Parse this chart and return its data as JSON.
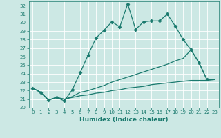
{
  "xlabel": "Humidex (Indice chaleur)",
  "xlim": [
    -0.5,
    23.5
  ],
  "ylim": [
    20,
    32.5
  ],
  "line_color": "#1a7a6e",
  "bg_color": "#cce8e4",
  "grid_color": "#ffffff",
  "series": [
    {
      "x": [
        0,
        1,
        2,
        3,
        4,
        5,
        6,
        7,
        8,
        9,
        10,
        11,
        12,
        13,
        14,
        15,
        16,
        17,
        18,
        19,
        20,
        21,
        22
      ],
      "y": [
        22.3,
        21.8,
        20.9,
        21.2,
        20.8,
        22.1,
        24.1,
        26.2,
        28.2,
        29.1,
        30.1,
        29.5,
        32.2,
        29.2,
        30.1,
        30.2,
        30.2,
        31.0,
        29.6,
        28.0,
        26.8,
        25.3,
        23.3
      ],
      "marker": "D",
      "markersize": 2.5,
      "linewidth": 0.9
    },
    {
      "x": [
        0,
        1,
        2,
        3,
        4,
        5,
        6,
        7,
        8,
        9,
        10,
        11,
        12,
        13,
        14,
        15,
        16,
        17,
        18,
        19,
        20,
        21,
        22,
        23
      ],
      "y": [
        22.3,
        21.8,
        20.9,
        21.2,
        21.0,
        21.3,
        21.8,
        22.0,
        22.3,
        22.6,
        23.0,
        23.3,
        23.6,
        23.9,
        24.2,
        24.5,
        24.8,
        25.1,
        25.5,
        25.8,
        26.8,
        25.3,
        23.3,
        23.3
      ],
      "marker": null,
      "markersize": 0,
      "linewidth": 0.9
    },
    {
      "x": [
        0,
        1,
        2,
        3,
        4,
        5,
        6,
        7,
        8,
        9,
        10,
        11,
        12,
        13,
        14,
        15,
        16,
        17,
        18,
        19,
        20,
        21,
        22,
        23
      ],
      "y": [
        22.3,
        21.8,
        20.9,
        21.2,
        21.0,
        21.2,
        21.4,
        21.5,
        21.7,
        21.8,
        22.0,
        22.1,
        22.3,
        22.4,
        22.5,
        22.7,
        22.8,
        22.9,
        23.0,
        23.1,
        23.2,
        23.2,
        23.2,
        23.3
      ],
      "marker": null,
      "markersize": 0,
      "linewidth": 0.9
    }
  ]
}
